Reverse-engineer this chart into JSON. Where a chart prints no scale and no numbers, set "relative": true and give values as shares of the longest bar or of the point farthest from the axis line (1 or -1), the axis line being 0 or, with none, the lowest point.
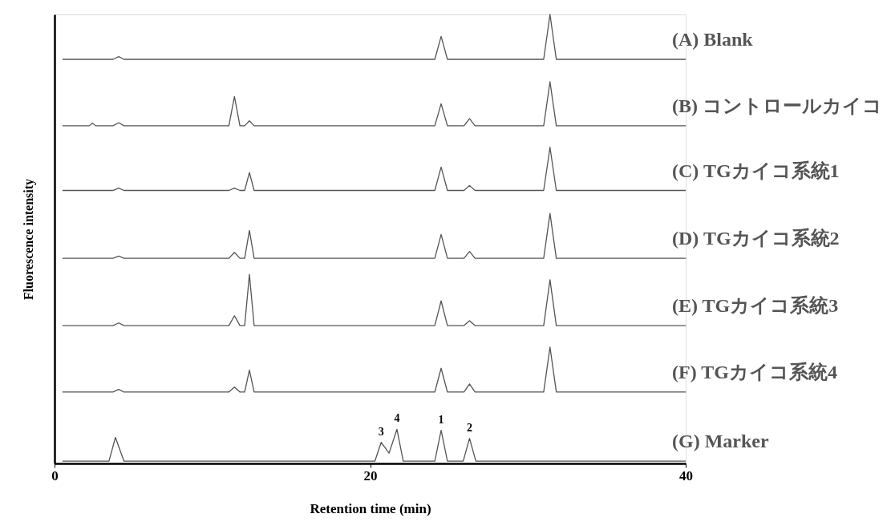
{
  "chart_data": {
    "type": "line",
    "relative": true,
    "xlabel": "Retention time (min)",
    "ylabel": "Fluorescence intensity",
    "xlim": [
      0,
      40
    ],
    "xticks": [
      0,
      20,
      40
    ],
    "grid": false,
    "marker": "none",
    "line_style": "solid",
    "series": [
      {
        "name": "(A) Blank",
        "color": "#555555",
        "x": [
          0.5,
          3.7,
          4.07,
          4.4,
          24.1,
          24.5,
          24.9,
          31.0,
          31.4,
          31.8,
          40
        ],
        "values": [
          0.9,
          0.9,
          0.906,
          0.9,
          0.9,
          0.951,
          0.9,
          0.9,
          1.0,
          0.9,
          0.9
        ]
      },
      {
        "name": "(B) コントロールカイコ",
        "color": "#555555",
        "x": [
          0.5,
          2.2,
          2.4,
          2.6,
          3.7,
          4.07,
          4.4,
          11.05,
          11.4,
          11.75,
          12.05,
          12.35,
          12.65,
          24.1,
          24.5,
          24.9,
          25.95,
          26.3,
          26.65,
          31.0,
          31.4,
          31.8,
          40
        ],
        "values": [
          0.752,
          0.752,
          0.758,
          0.752,
          0.752,
          0.759,
          0.752,
          0.752,
          0.817,
          0.752,
          0.752,
          0.763,
          0.752,
          0.752,
          0.801,
          0.752,
          0.752,
          0.768,
          0.752,
          0.752,
          0.85,
          0.752,
          0.752
        ]
      },
      {
        "name": "(C) TGカイコ系統1",
        "color": "#555555",
        "x": [
          0.5,
          3.7,
          4.07,
          4.4,
          11.05,
          11.4,
          11.75,
          12.05,
          12.35,
          12.65,
          24.1,
          24.5,
          24.9,
          25.95,
          26.3,
          26.65,
          31.0,
          31.4,
          31.8,
          40
        ],
        "values": [
          0.608,
          0.608,
          0.613,
          0.608,
          0.608,
          0.613,
          0.608,
          0.608,
          0.648,
          0.608,
          0.608,
          0.66,
          0.608,
          0.608,
          0.619,
          0.608,
          0.608,
          0.704,
          0.608,
          0.608
        ]
      },
      {
        "name": "(D) TGカイコ系統2",
        "color": "#555555",
        "x": [
          0.5,
          3.7,
          4.07,
          4.4,
          11.05,
          11.4,
          11.75,
          12.05,
          12.35,
          12.65,
          24.1,
          24.5,
          24.9,
          25.95,
          26.3,
          26.65,
          31.0,
          31.4,
          31.8,
          40
        ],
        "values": [
          0.457,
          0.457,
          0.462,
          0.457,
          0.457,
          0.47,
          0.457,
          0.457,
          0.519,
          0.457,
          0.457,
          0.51,
          0.457,
          0.457,
          0.472,
          0.457,
          0.457,
          0.557,
          0.457,
          0.457
        ]
      },
      {
        "name": "(E) TGカイコ系統3",
        "color": "#555555",
        "x": [
          0.5,
          3.7,
          4.07,
          4.4,
          11.05,
          11.4,
          11.75,
          12.05,
          12.35,
          12.65,
          24.1,
          24.5,
          24.9,
          25.95,
          26.3,
          26.65,
          31.0,
          31.4,
          31.8,
          40
        ],
        "values": [
          0.307,
          0.307,
          0.313,
          0.307,
          0.307,
          0.329,
          0.307,
          0.307,
          0.421,
          0.307,
          0.307,
          0.362,
          0.307,
          0.307,
          0.318,
          0.307,
          0.307,
          0.409,
          0.307,
          0.307
        ]
      },
      {
        "name": "(F) TGカイコ系統4",
        "color": "#555555",
        "x": [
          0.5,
          3.7,
          4.07,
          4.4,
          11.05,
          11.4,
          11.75,
          12.05,
          12.35,
          12.65,
          24.1,
          24.5,
          24.9,
          25.95,
          26.3,
          26.65,
          31.0,
          31.4,
          31.8,
          40
        ],
        "values": [
          0.159,
          0.159,
          0.165,
          0.159,
          0.159,
          0.17,
          0.159,
          0.159,
          0.208,
          0.159,
          0.159,
          0.212,
          0.159,
          0.159,
          0.177,
          0.159,
          0.159,
          0.259,
          0.159,
          0.159
        ]
      },
      {
        "name": "(G) Marker",
        "color": "#555555",
        "x": [
          0.5,
          3.45,
          3.86,
          4.4,
          20.3,
          20.7,
          21.2,
          21.7,
          22.1,
          24.1,
          24.5,
          24.9,
          25.9,
          26.3,
          26.7,
          40
        ],
        "values": [
          0.005,
          0.005,
          0.058,
          0.005,
          0.005,
          0.047,
          0.023,
          0.076,
          0.005,
          0.005,
          0.074,
          0.005,
          0.005,
          0.056,
          0.005,
          0.005
        ]
      }
    ],
    "annotations": [
      {
        "text": "1",
        "x": 24.5,
        "y": 0.074
      },
      {
        "text": "2",
        "x": 26.3,
        "y": 0.056
      },
      {
        "text": "3",
        "x": 20.7,
        "y": 0.047
      },
      {
        "text": "4",
        "x": 21.7,
        "y": 0.076
      }
    ]
  }
}
